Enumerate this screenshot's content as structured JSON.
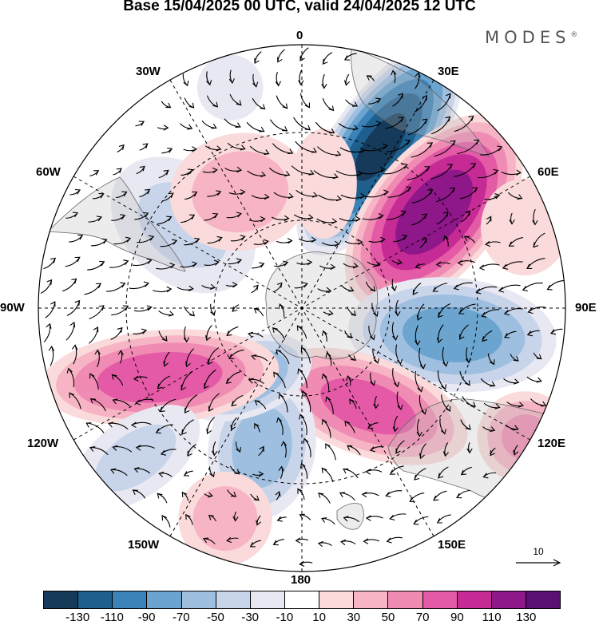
{
  "title": "Base 15/04/2025 00 UTC, valid 24/04/2025 12 UTC",
  "brand": {
    "name": "MODES",
    "mark": "®"
  },
  "longitude_labels": [
    "0",
    "30E",
    "60E",
    "90E",
    "120E",
    "150E",
    "180",
    "150W",
    "120W",
    "90W",
    "60W",
    "30W"
  ],
  "reference_vector": {
    "label": "10"
  },
  "colorbar": {
    "colors": [
      "#153a5a",
      "#1e5f8e",
      "#3b82b8",
      "#6aa4cf",
      "#9ebfe0",
      "#c8d4ea",
      "#e8e8f2",
      "#ffffff",
      "#fadada",
      "#f6b4c4",
      "#f08cb4",
      "#e45aa6",
      "#c62a94",
      "#8e178a",
      "#5a0f72"
    ],
    "tick_labels": [
      "-130",
      "-110",
      "-90",
      "-70",
      "-50",
      "-30",
      "-10",
      "10",
      "30",
      "50",
      "70",
      "90",
      "110",
      "130"
    ]
  },
  "anomaly_centres": [
    {
      "lon": 26,
      "colat": 0.68,
      "value": -135,
      "sx": 0.2,
      "sy": 0.5,
      "rot": 35
    },
    {
      "lon": 54,
      "colat": 0.62,
      "value": 125,
      "sx": 0.25,
      "sy": 0.46,
      "rot": 40
    },
    {
      "lon": 100,
      "colat": 0.58,
      "value": -80,
      "sx": 0.42,
      "sy": 0.23,
      "rot": 5
    },
    {
      "lon": 146,
      "colat": 0.45,
      "value": 80,
      "sx": 0.42,
      "sy": 0.2,
      "rot": 20
    },
    {
      "lon": 120,
      "colat": 0.98,
      "value": 55,
      "sx": 0.2,
      "sy": 0.19,
      "rot": 0
    },
    {
      "lon": 196,
      "colat": 0.55,
      "value": -60,
      "sx": 0.3,
      "sy": 0.22,
      "rot": 100
    },
    {
      "lon": 219,
      "colat": 0.34,
      "value": -70,
      "sx": 0.16,
      "sy": 0.28,
      "rot": 70
    },
    {
      "lon": 244,
      "colat": 0.6,
      "value": 85,
      "sx": 0.19,
      "sy": 0.48,
      "rot": 85
    },
    {
      "lon": 228,
      "colat": 0.85,
      "value": -35,
      "sx": 0.17,
      "sy": 0.32,
      "rot": 55
    },
    {
      "lon": 200,
      "colat": 0.85,
      "value": 40,
      "sx": 0.2,
      "sy": 0.2,
      "rot": 0
    },
    {
      "lon": 305,
      "colat": 0.55,
      "value": -35,
      "sx": 0.35,
      "sy": 0.25,
      "rot": 40
    },
    {
      "lon": 332,
      "colat": 0.5,
      "value": 40,
      "sx": 0.25,
      "sy": 0.3,
      "rot": 80
    },
    {
      "lon": 342,
      "colat": 0.88,
      "value": -25,
      "sx": 0.15,
      "sy": 0.15,
      "rot": 0
    },
    {
      "lon": 10,
      "colat": 0.48,
      "value": 25,
      "sx": 0.15,
      "sy": 0.25,
      "rot": 0
    },
    {
      "lon": 70,
      "colat": 0.9,
      "value": 25,
      "sx": 0.2,
      "sy": 0.22,
      "rot": 0
    }
  ]
}
